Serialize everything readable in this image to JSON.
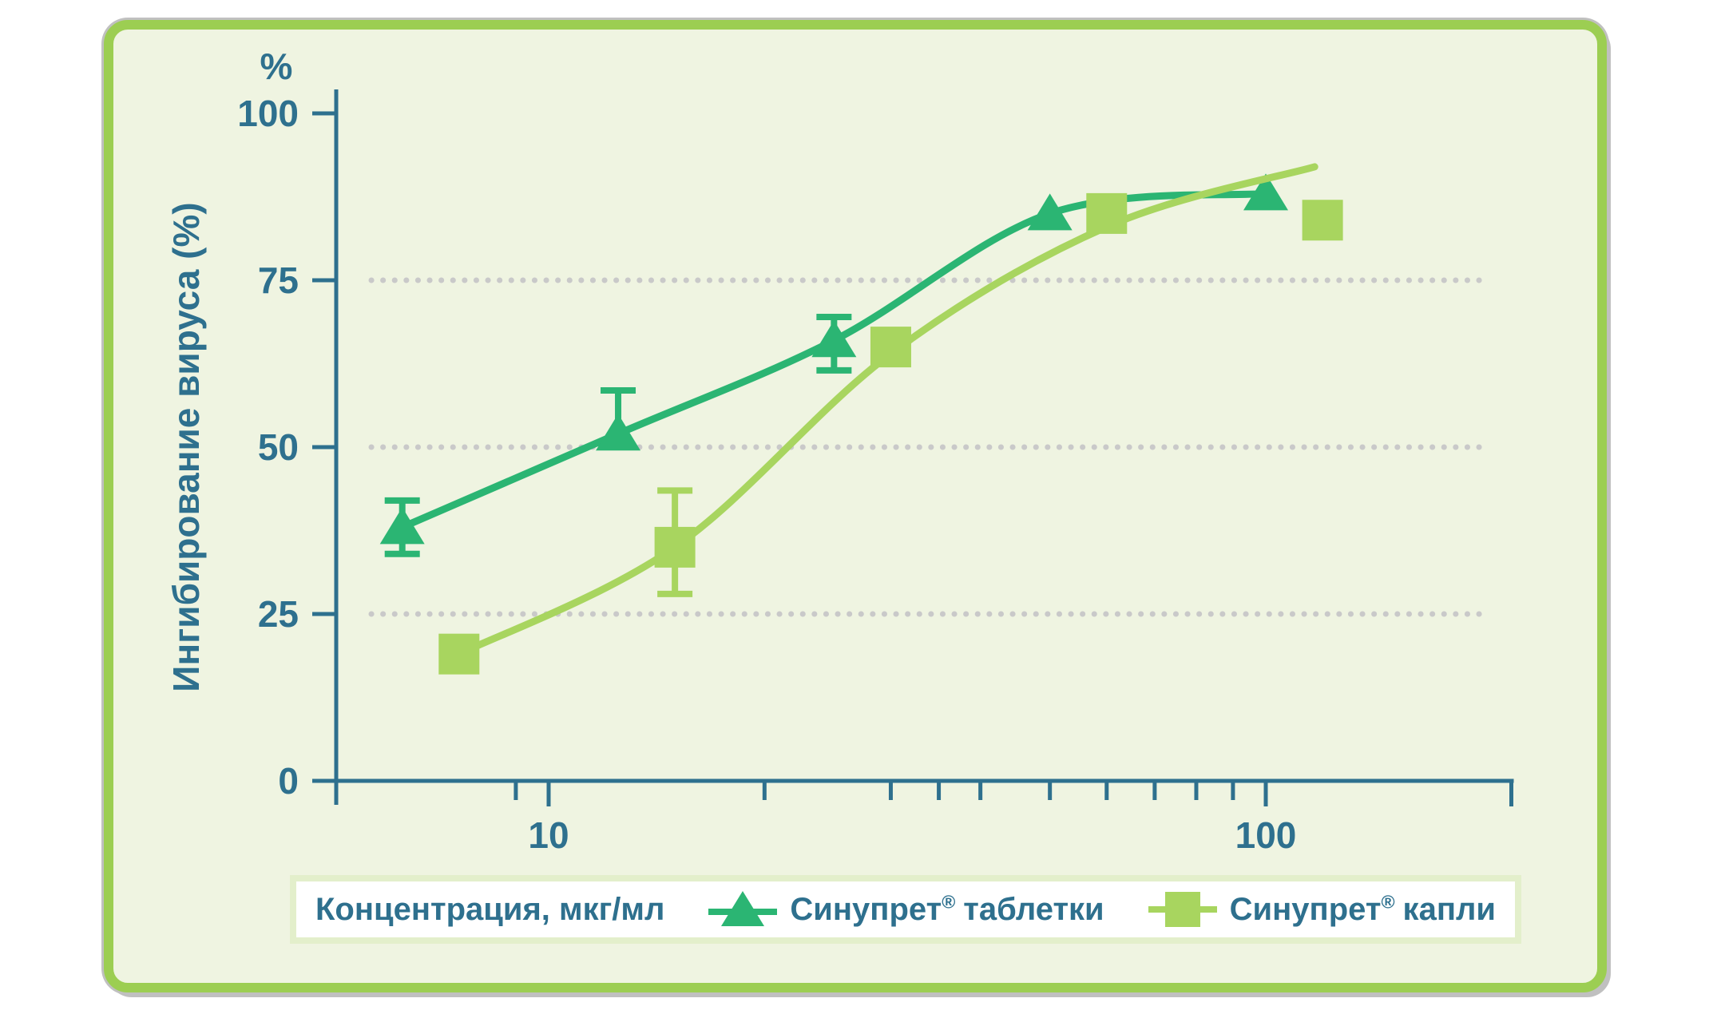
{
  "colors": {
    "page_bg": "#ffffff",
    "card_bg": "#eff4e1",
    "card_border": "#9cce52",
    "card_shadow": "#c0c0c0",
    "axis_and_text": "#2e708e",
    "gridline": "#c9c9c9",
    "legend_bg": "#ffffff",
    "legend_border": "#e3efcb",
    "series_tablets": "#2bb573",
    "series_drops": "#a8d55f"
  },
  "chart_data": {
    "type": "scatter",
    "title": "",
    "xlabel": "Концентрация, мкг/мл",
    "ylabel": "Ингибирование вируса (%)",
    "y_axis_unit": "%",
    "x_scale": "log",
    "x_range": [
      5,
      220
    ],
    "y_range": [
      0,
      100
    ],
    "y_ticks": [
      0,
      25,
      50,
      75,
      100
    ],
    "y_gridlines": [
      25,
      50,
      75
    ],
    "x_major_ticks": [
      10,
      100
    ],
    "x_minor_ticks": [
      9,
      20,
      30,
      35,
      40,
      50,
      60,
      70,
      80,
      90
    ],
    "x_end_tick": 220,
    "grid": "dotted horizontal at 25/50/75",
    "legend_position": "bottom",
    "series": [
      {
        "name": "Синупрет® таблетки",
        "brand": "Синупрет",
        "reg": "®",
        "variant": "таблетки",
        "marker": "triangle",
        "color": "#2bb573",
        "points": [
          {
            "x": 6.25,
            "y": 38,
            "err_up": 4,
            "err_down": 4
          },
          {
            "x": 12.5,
            "y": 52,
            "err_up": 6.5,
            "err_down": 2
          },
          {
            "x": 25,
            "y": 66,
            "err_up": 3.5,
            "err_down": 4.5
          },
          {
            "x": 50,
            "y": 85,
            "err_up": 0,
            "err_down": 0
          },
          {
            "x": 100,
            "y": 88,
            "err_up": 0,
            "err_down": 0
          }
        ],
        "trend": [
          [
            6.25,
            38
          ],
          [
            12.5,
            52
          ],
          [
            25,
            66
          ],
          [
            50,
            85
          ],
          [
            100,
            88
          ]
        ]
      },
      {
        "name": "Синупрет® капли",
        "brand": "Синупрет",
        "reg": "®",
        "variant": "капли",
        "marker": "square",
        "color": "#a8d55f",
        "points": [
          {
            "x": 7.5,
            "y": 19,
            "err_up": 0,
            "err_down": 0
          },
          {
            "x": 15,
            "y": 35,
            "err_up": 8.5,
            "err_down": 7
          },
          {
            "x": 30,
            "y": 65,
            "err_up": 0,
            "err_down": 0
          },
          {
            "x": 60,
            "y": 85,
            "err_up": 0,
            "err_down": 0
          },
          {
            "x": 120,
            "y": 84,
            "err_up": 0,
            "err_down": 0
          }
        ],
        "trend": [
          [
            7.5,
            19
          ],
          [
            15,
            35
          ],
          [
            30,
            64
          ],
          [
            60,
            83
          ],
          [
            117,
            92
          ]
        ]
      }
    ]
  }
}
